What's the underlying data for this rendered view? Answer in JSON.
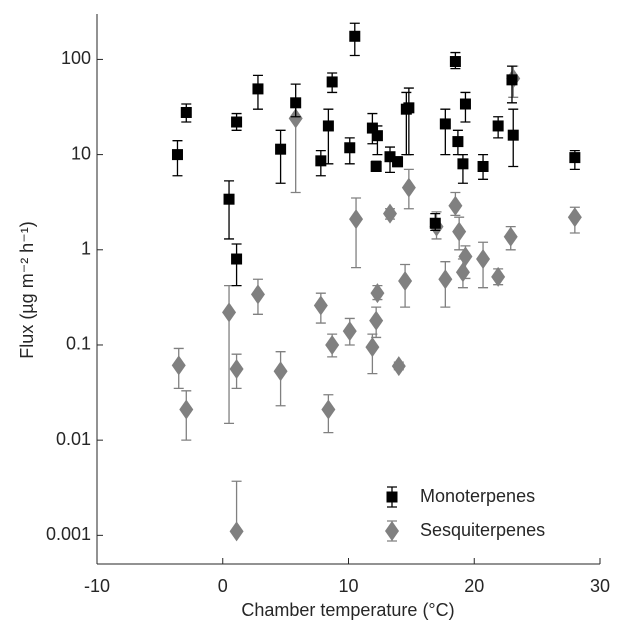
{
  "chart_data": {
    "type": "scatter",
    "xlabel": "Chamber temperature (°C)",
    "ylabel": "Flux (µg m⁻² h⁻¹)",
    "xlim": [
      -10,
      30
    ],
    "xticks": [
      -10,
      0,
      10,
      20,
      30
    ],
    "ylim": [
      0.0005,
      300
    ],
    "yticks": [
      0.001,
      0.01,
      0.1,
      1,
      10,
      100
    ],
    "ylog": true,
    "legend": "lower right",
    "series": [
      {
        "name": "Monoterpenes",
        "color": "#000000",
        "marker": "square",
        "x": [
          -3.6,
          -2.9,
          1.1,
          0.5,
          1.1,
          2.8,
          4.6,
          5.8,
          7.8,
          8.4,
          8.7,
          10.1,
          10.5,
          11.9,
          12.2,
          12.3,
          13.3,
          13.9,
          14.6,
          14.8,
          17.7,
          18.5,
          18.7,
          19.1,
          19.3,
          20.7,
          21.9,
          23.0,
          23.1,
          28.0,
          16.9
        ],
        "values": [
          10,
          27.7,
          22,
          3.4,
          0.8,
          49,
          11.4,
          35,
          8.6,
          20,
          58,
          11.8,
          175,
          19,
          7.5,
          15.8,
          9.5,
          8.4,
          30,
          31,
          21,
          95,
          13.7,
          8,
          34,
          7.5,
          20,
          61,
          16,
          9.3,
          1.9
        ],
        "lower": [
          6,
          22,
          18,
          1.3,
          0.42,
          30,
          5,
          25,
          6,
          8,
          45,
          8,
          110,
          13,
          6.8,
          10,
          6.5,
          7.5,
          10,
          10,
          10,
          80,
          10,
          5,
          22,
          5.5,
          15,
          35,
          7.5,
          7,
          1.6
        ],
        "upper": [
          14,
          34,
          27,
          5.3,
          1.15,
          68,
          18,
          55,
          11,
          30,
          72,
          15,
          240,
          27,
          8.5,
          20,
          12,
          9.5,
          45,
          50,
          30,
          118,
          18,
          10,
          45,
          10,
          25,
          85,
          30,
          11,
          2.4
        ]
      },
      {
        "name": "Sesquiterpenes",
        "color": "#808080",
        "marker": "diamond",
        "x": [
          -3.5,
          -2.9,
          0.5,
          1.1,
          1.1,
          2.8,
          4.6,
          5.8,
          7.8,
          8.4,
          8.7,
          10.1,
          10.6,
          11.9,
          12.2,
          12.3,
          13.3,
          14.0,
          14.5,
          14.8,
          17.0,
          17.7,
          18.5,
          18.8,
          19.1,
          19.3,
          20.7,
          21.9,
          22.9,
          23.1,
          28.0
        ],
        "values": [
          0.061,
          0.021,
          0.22,
          0.056,
          0.0011,
          0.34,
          0.053,
          24,
          0.26,
          0.021,
          0.1,
          0.14,
          2.1,
          0.095,
          0.18,
          0.35,
          2.4,
          0.06,
          0.47,
          4.5,
          1.75,
          0.49,
          2.9,
          1.55,
          0.58,
          0.85,
          0.8,
          0.52,
          1.37,
          63,
          2.2
        ],
        "lower": [
          0.035,
          0.01,
          0.015,
          0.035,
          0.0011,
          0.21,
          0.023,
          4,
          0.17,
          0.012,
          0.075,
          0.1,
          0.65,
          0.05,
          0.12,
          0.3,
          2.1,
          0.055,
          0.25,
          2.7,
          1.3,
          0.25,
          2.3,
          1,
          0.4,
          0.5,
          0.4,
          0.43,
          1,
          40,
          1.5
        ],
        "upper": [
          0.092,
          0.033,
          0.42,
          0.08,
          0.0037,
          0.49,
          0.085,
          35,
          0.35,
          0.03,
          0.13,
          0.19,
          3.5,
          0.13,
          0.25,
          0.42,
          2.7,
          0.066,
          0.7,
          7,
          2.5,
          0.75,
          4,
          2.2,
          0.8,
          1.1,
          1.2,
          0.63,
          1.75,
          85,
          2.8
        ]
      }
    ]
  }
}
